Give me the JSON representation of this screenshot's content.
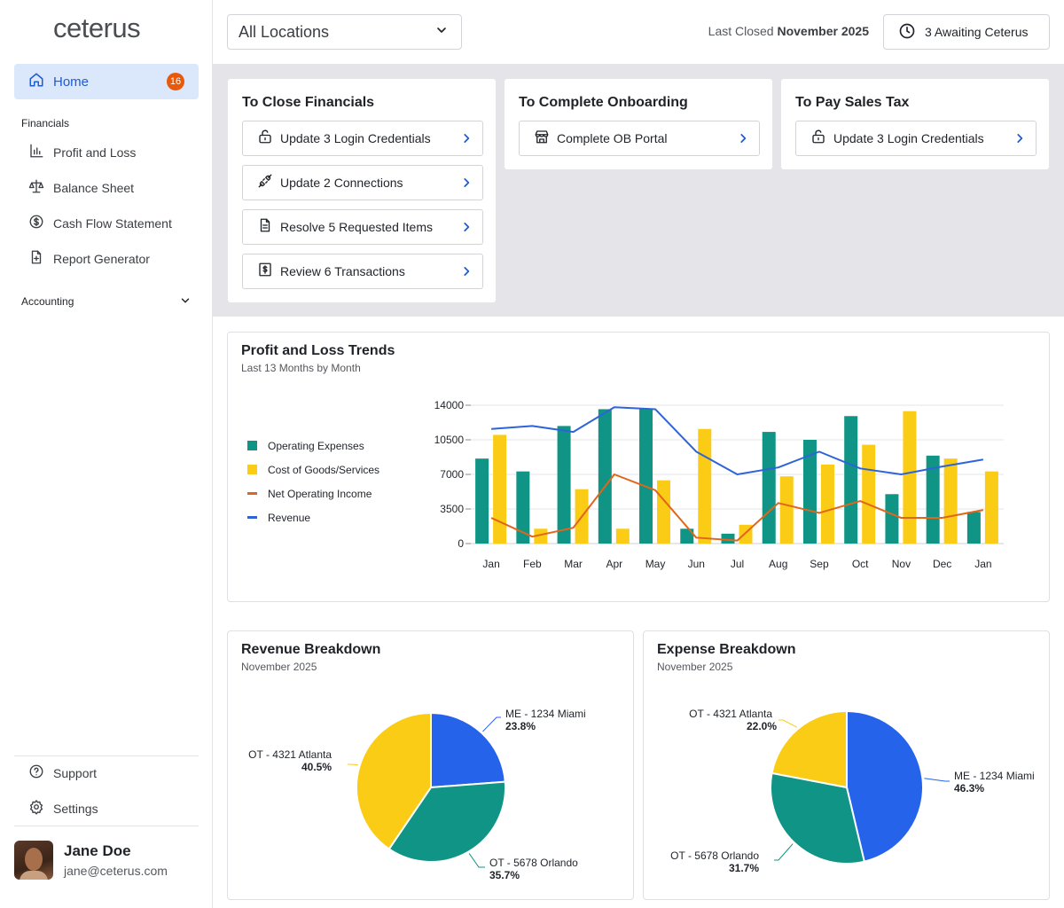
{
  "sidebar": {
    "logo": "ceterus",
    "home": {
      "label": "Home",
      "badge": "16"
    },
    "financials_label": "Financials",
    "financials_items": [
      {
        "label": "Profit and Loss",
        "icon": "bar-chart-icon"
      },
      {
        "label": "Balance Sheet",
        "icon": "scale-icon"
      },
      {
        "label": "Cash Flow Statement",
        "icon": "dollar-circle-icon"
      },
      {
        "label": "Report Generator",
        "icon": "file-plus-icon"
      }
    ],
    "accounting_label": "Accounting",
    "support_label": "Support",
    "settings_label": "Settings",
    "user": {
      "name": "Jane Doe",
      "email": "jane@ceterus.com"
    }
  },
  "header": {
    "location_select": "All Locations",
    "last_closed_prefix": "Last Closed",
    "last_closed_value": "November 2025",
    "awaiting_label": "3 Awaiting Ceterus"
  },
  "tasks": {
    "close_financials": {
      "title": "To Close Financials",
      "items": [
        {
          "label": "Update 3 Login Credentials",
          "icon": "lock-icon"
        },
        {
          "label": "Update 2 Connections",
          "icon": "plug-icon"
        },
        {
          "label": "Resolve 5 Requested Items",
          "icon": "document-icon"
        },
        {
          "label": "Review 6 Transactions",
          "icon": "receipt-dollar-icon"
        }
      ]
    },
    "complete_onboarding": {
      "title": "To Complete Onboarding",
      "items": [
        {
          "label": "Complete OB Portal",
          "icon": "storefront-icon"
        }
      ]
    },
    "pay_sales_tax": {
      "title": "To Pay Sales Tax",
      "items": [
        {
          "label": "Update 3 Login Credentials",
          "icon": "lock-icon"
        }
      ]
    }
  },
  "colors": {
    "accent": "#1f5bd1",
    "teal": "#0f9485",
    "yellow": "#facc15",
    "orange": "#e0661b",
    "blue_line": "#2e64d8",
    "pie_blue": "#2563eb",
    "badge": "#e8590c"
  },
  "pl_trends": {
    "title": "Profit and Loss Trends",
    "subtitle": "Last 13 Months by Month"
  },
  "revenue_breakdown": {
    "title": "Revenue Breakdown",
    "subtitle": "November 2025"
  },
  "expense_breakdown": {
    "title": "Expense Breakdown",
    "subtitle": "November 2025"
  },
  "chart_data": [
    {
      "type": "bar",
      "title": "Profit and Loss Trends",
      "categories": [
        "Jan",
        "Feb",
        "Mar",
        "Apr",
        "May",
        "Jun",
        "Jul",
        "Aug",
        "Sep",
        "Oct",
        "Nov",
        "Dec",
        "Jan"
      ],
      "yticks": [
        0,
        3500,
        7000,
        10500,
        14000
      ],
      "ylim": [
        0,
        14000
      ],
      "series": [
        {
          "name": "Operating Expenses",
          "kind": "bar",
          "color": "#0f9485",
          "values": [
            8600,
            7300,
            11900,
            13600,
            13600,
            1500,
            1000,
            11300,
            10500,
            12900,
            5000,
            8900,
            3200
          ]
        },
        {
          "name": "Cost of Goods/Services",
          "kind": "bar",
          "color": "#facc15",
          "values": [
            11000,
            1500,
            5500,
            1500,
            6400,
            11600,
            1900,
            6800,
            8000,
            10000,
            13400,
            8600,
            7300
          ]
        },
        {
          "name": "Net Operating Income",
          "kind": "line",
          "color": "#e0661b",
          "values": [
            2600,
            700,
            1600,
            7000,
            5400,
            600,
            300,
            4100,
            3100,
            4300,
            2600,
            2600,
            3400
          ]
        },
        {
          "name": "Revenue",
          "kind": "line",
          "color": "#2e64d8",
          "values": [
            11600,
            11900,
            11300,
            13800,
            13600,
            9300,
            7000,
            7700,
            9300,
            7600,
            7000,
            7800,
            8500
          ]
        }
      ]
    },
    {
      "type": "pie",
      "title": "Revenue Breakdown",
      "slices": [
        {
          "label": "ME - 1234 Miami",
          "value": 23.8,
          "pct": "23.8%",
          "color": "#2563eb"
        },
        {
          "label": "OT - 5678 Orlando",
          "value": 35.7,
          "pct": "35.7%",
          "color": "#0f9485"
        },
        {
          "label": "OT - 4321 Atlanta",
          "value": 40.5,
          "pct": "40.5%",
          "color": "#facc15"
        }
      ]
    },
    {
      "type": "pie",
      "title": "Expense Breakdown",
      "slices": [
        {
          "label": "ME - 1234 Miami",
          "value": 46.3,
          "pct": "46.3%",
          "color": "#2563eb"
        },
        {
          "label": "OT - 5678 Orlando",
          "value": 31.7,
          "pct": "31.7%",
          "color": "#0f9485"
        },
        {
          "label": "OT - 4321 Atlanta",
          "value": 22.0,
          "pct": "22.0%",
          "color": "#facc15"
        }
      ]
    }
  ]
}
